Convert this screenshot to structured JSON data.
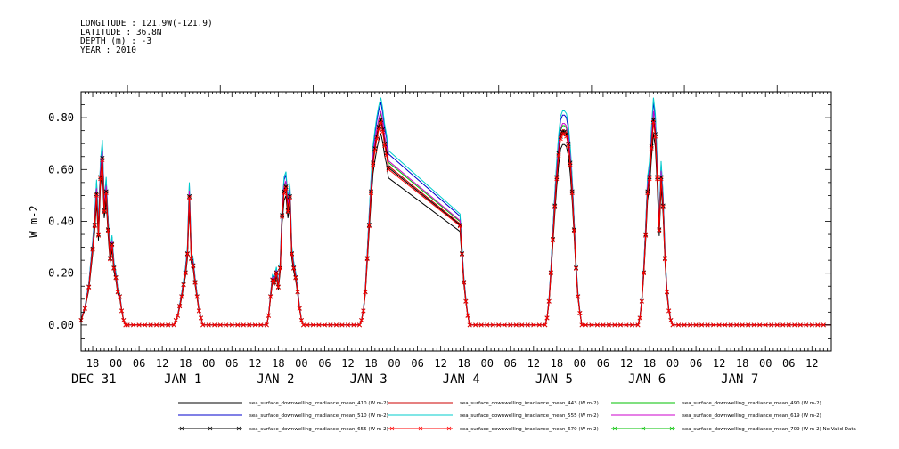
{
  "header": [
    "LONGITUDE : 121.9W(-121.9)",
    "LATITUDE : 36.8N",
    "DEPTH (m) : -3",
    "YEAR : 2010"
  ],
  "chart_data": {
    "type": "line",
    "title": "",
    "ylabel": "W m-2",
    "xlabel": "",
    "ylim": [
      -0.1,
      0.9
    ],
    "xlim_hours": [
      12,
      206
    ],
    "y_ticks": [
      0.0,
      0.2,
      0.4,
      0.6,
      0.8
    ],
    "y_tick_labels": [
      "0.00",
      "0.20",
      "0.40",
      "0.60",
      "0.80"
    ],
    "hour_tick_labels": [
      {
        "h": 15,
        "label": "18"
      },
      {
        "h": 21,
        "label": "00"
      },
      {
        "h": 27,
        "label": "06"
      },
      {
        "h": 33,
        "label": "12"
      },
      {
        "h": 39,
        "label": "18"
      },
      {
        "h": 45,
        "label": "00"
      },
      {
        "h": 51,
        "label": "06"
      },
      {
        "h": 57,
        "label": "12"
      },
      {
        "h": 63,
        "label": "18"
      },
      {
        "h": 69,
        "label": "00"
      },
      {
        "h": 75,
        "label": "06"
      },
      {
        "h": 81,
        "label": "12"
      },
      {
        "h": 87,
        "label": "18"
      },
      {
        "h": 93,
        "label": "00"
      },
      {
        "h": 99,
        "label": "06"
      },
      {
        "h": 105,
        "label": "12"
      },
      {
        "h": 111,
        "label": "18"
      },
      {
        "h": 117,
        "label": "00"
      },
      {
        "h": 123,
        "label": "06"
      },
      {
        "h": 129,
        "label": "12"
      },
      {
        "h": 135,
        "label": "18"
      },
      {
        "h": 141,
        "label": "00"
      },
      {
        "h": 147,
        "label": "06"
      },
      {
        "h": 153,
        "label": "12"
      },
      {
        "h": 159,
        "label": "18"
      },
      {
        "h": 165,
        "label": "00"
      },
      {
        "h": 171,
        "label": "06"
      },
      {
        "h": 177,
        "label": "12"
      },
      {
        "h": 183,
        "label": "18"
      },
      {
        "h": 189,
        "label": "00"
      },
      {
        "h": 195,
        "label": "06"
      },
      {
        "h": 201,
        "label": "12"
      }
    ],
    "date_labels": [
      {
        "h": 12,
        "label": "DEC 31"
      },
      {
        "h": 36,
        "label": "JAN  1"
      },
      {
        "h": 60,
        "label": "JAN  2"
      },
      {
        "h": 84,
        "label": "JAN  3"
      },
      {
        "h": 108,
        "label": "JAN  4"
      },
      {
        "h": 132,
        "label": "JAN  5"
      },
      {
        "h": 156,
        "label": "JAN  6"
      },
      {
        "h": 180,
        "label": "JAN  7"
      }
    ],
    "x_units": "hours since DEC 30 2010 00:00",
    "series": [
      {
        "name": "sea_surface_downwelling_irradiance_mean_410 (W m-2)",
        "color": "#000000",
        "marker": "none",
        "scale": 0.86
      },
      {
        "name": "sea_surface_downwelling_irradiance_mean_443 (W m-2)",
        "color": "#cc0000",
        "marker": "none",
        "scale": 0.93
      },
      {
        "name": "sea_surface_downwelling_irradiance_mean_490 (W m-2)",
        "color": "#00c000",
        "marker": "none",
        "scale": 0.95
      },
      {
        "name": "sea_surface_downwelling_irradiance_mean_510 (W m-2)",
        "color": "#0000cc",
        "marker": "none",
        "scale": 1.0
      },
      {
        "name": "sea_surface_downwelling_irradiance_mean_555 (W m-2)",
        "color": "#00cccc",
        "marker": "none",
        "scale": 1.02
      },
      {
        "name": "sea_surface_downwelling_irradiance_mean_619 (W m-2)",
        "color": "#cc00cc",
        "marker": "none",
        "scale": 0.96
      },
      {
        "name": "sea_surface_downwelling_irradiance_mean_655 (W m-2)",
        "color": "#000000",
        "marker": "x",
        "scale": 0.92
      },
      {
        "name": "sea_surface_downwelling_irradiance_mean_670 (W m-2)",
        "color": "#ff0000",
        "marker": "x",
        "scale": 0.91
      },
      {
        "name": "sea_surface_downwelling_irradiance_mean_709 (W m-2) No Valid Data",
        "color": "#00c000",
        "marker": "x",
        "scale": 0
      }
    ],
    "base_profile_510": [
      [
        12,
        0.02
      ],
      [
        13,
        0.07
      ],
      [
        14,
        0.16
      ],
      [
        15,
        0.32
      ],
      [
        15.5,
        0.42
      ],
      [
        16,
        0.55
      ],
      [
        16.5,
        0.38
      ],
      [
        17,
        0.62
      ],
      [
        17.5,
        0.7
      ],
      [
        18,
        0.48
      ],
      [
        18.5,
        0.56
      ],
      [
        19,
        0.4
      ],
      [
        19.5,
        0.28
      ],
      [
        20,
        0.34
      ],
      [
        20.5,
        0.24
      ],
      [
        21,
        0.2
      ],
      [
        21.5,
        0.14
      ],
      [
        22,
        0.12
      ],
      [
        22.5,
        0.06
      ],
      [
        23,
        0.02
      ],
      [
        23.5,
        0.0
      ],
      [
        36,
        0.0
      ],
      [
        36.5,
        0.02
      ],
      [
        37,
        0.04
      ],
      [
        37.5,
        0.08
      ],
      [
        38,
        0.12
      ],
      [
        38.5,
        0.17
      ],
      [
        39,
        0.22
      ],
      [
        39.5,
        0.3
      ],
      [
        40,
        0.54
      ],
      [
        40.5,
        0.28
      ],
      [
        41,
        0.25
      ],
      [
        41.5,
        0.18
      ],
      [
        42,
        0.12
      ],
      [
        42.5,
        0.06
      ],
      [
        43,
        0.03
      ],
      [
        43.5,
        0.0
      ],
      [
        60,
        0.0
      ],
      [
        60.5,
        0.04
      ],
      [
        61,
        0.12
      ],
      [
        61.5,
        0.19
      ],
      [
        62,
        0.18
      ],
      [
        62.5,
        0.22
      ],
      [
        63,
        0.16
      ],
      [
        63.5,
        0.24
      ],
      [
        64,
        0.46
      ],
      [
        64.5,
        0.56
      ],
      [
        65,
        0.58
      ],
      [
        65.5,
        0.48
      ],
      [
        66,
        0.54
      ],
      [
        66.5,
        0.3
      ],
      [
        67,
        0.24
      ],
      [
        67.5,
        0.2
      ],
      [
        68,
        0.14
      ],
      [
        68.5,
        0.07
      ],
      [
        69,
        0.02
      ],
      [
        69.5,
        0.0
      ],
      [
        84,
        0.0
      ],
      [
        84.5,
        0.02
      ],
      [
        85,
        0.06
      ],
      [
        85.5,
        0.14
      ],
      [
        86,
        0.28
      ],
      [
        86.5,
        0.42
      ],
      [
        87,
        0.56
      ],
      [
        87.5,
        0.68
      ],
      [
        88,
        0.74
      ],
      [
        88.5,
        0.79
      ],
      [
        89,
        0.83
      ],
      [
        89.5,
        0.86
      ],
      [
        90,
        0.82
      ],
      [
        90.5,
        0.76
      ],
      [
        91,
        0.72
      ],
      [
        91.5,
        0.66
      ],
      [
        110,
        0.42
      ],
      [
        110.5,
        0.3
      ],
      [
        111,
        0.18
      ],
      [
        111.5,
        0.1
      ],
      [
        112,
        0.04
      ],
      [
        112.5,
        0.0
      ],
      [
        132,
        0.0
      ],
      [
        132.5,
        0.03
      ],
      [
        133,
        0.1
      ],
      [
        133.5,
        0.22
      ],
      [
        134,
        0.36
      ],
      [
        134.5,
        0.5
      ],
      [
        135,
        0.62
      ],
      [
        135.5,
        0.72
      ],
      [
        136,
        0.79
      ],
      [
        136.5,
        0.81
      ],
      [
        137,
        0.81
      ],
      [
        137.5,
        0.8
      ],
      [
        138,
        0.76
      ],
      [
        138.5,
        0.68
      ],
      [
        139,
        0.56
      ],
      [
        139.5,
        0.4
      ],
      [
        140,
        0.24
      ],
      [
        140.5,
        0.12
      ],
      [
        141,
        0.05
      ],
      [
        141.5,
        0.0
      ],
      [
        156,
        0.0
      ],
      [
        156.5,
        0.03
      ],
      [
        157,
        0.1
      ],
      [
        157.5,
        0.22
      ],
      [
        158,
        0.38
      ],
      [
        158.5,
        0.56
      ],
      [
        159,
        0.62
      ],
      [
        159.5,
        0.75
      ],
      [
        160,
        0.86
      ],
      [
        160.5,
        0.8
      ],
      [
        161,
        0.62
      ],
      [
        161.5,
        0.4
      ],
      [
        162,
        0.62
      ],
      [
        162.5,
        0.5
      ],
      [
        163,
        0.28
      ],
      [
        163.5,
        0.14
      ],
      [
        164,
        0.06
      ],
      [
        164.5,
        0.02
      ],
      [
        165,
        0.0
      ],
      [
        206,
        0.0
      ]
    ],
    "legend": [
      {
        "label": "sea_surface_downwelling_irradiance_mean_410 (W m-2)"
      },
      {
        "label": "sea_surface_downwelling_irradiance_mean_443 (W m-2)"
      },
      {
        "label": "sea_surface_downwelling_irradiance_mean_490 (W m-2)"
      },
      {
        "label": "sea_surface_downwelling_irradiance_mean_510 (W m-2)"
      },
      {
        "label": "sea_surface_downwelling_irradiance_mean_555 (W m-2)"
      },
      {
        "label": "sea_surface_downwelling_irradiance_mean_619 (W m-2)"
      },
      {
        "label": "sea_surface_downwelling_irradiance_mean_655 (W m-2)"
      },
      {
        "label": "sea_surface_downwelling_irradiance_mean_670 (W m-2)"
      },
      {
        "label": "sea_surface_downwelling_irradiance_mean_709 (W m-2) No Valid Data"
      }
    ]
  }
}
